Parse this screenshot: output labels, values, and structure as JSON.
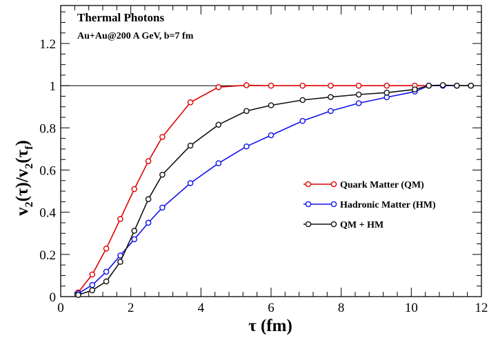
{
  "chart_data": {
    "type": "line",
    "title": "Thermal Photons",
    "subtitle": "Au+Au@200 A GeV, b=7 fm",
    "xlabel": "τ   (fm)",
    "ylabel": "v2(τ)/v2(τf)",
    "xlim": [
      0,
      12
    ],
    "ylim": [
      0,
      1.38
    ],
    "xticks": [
      "0",
      "2",
      "4",
      "6",
      "8",
      "10",
      "12"
    ],
    "yticks": [
      "0",
      "0.2",
      "0.4",
      "0.6",
      "0.8",
      "1",
      "1.2"
    ],
    "reference_line": 1,
    "legend_position": "center-right",
    "grid": false,
    "series": [
      {
        "name": "Quark Matter (QM)",
        "color": "#e00000",
        "x": [
          0.5,
          0.9,
          1.3,
          1.7,
          2.1,
          2.5,
          2.9,
          3.7,
          4.5,
          5.3,
          6.0,
          6.9,
          7.7,
          8.5,
          9.3,
          10.1,
          10.5,
          10.9,
          11.3,
          11.7
        ],
        "y": [
          0.02,
          0.105,
          0.228,
          0.368,
          0.51,
          0.642,
          0.757,
          0.921,
          0.993,
          1.002,
          1.0,
          1.0,
          1.0,
          1.0,
          1.0,
          1.0,
          1.0,
          1.0,
          1.0,
          1.0
        ]
      },
      {
        "name": "Hadronic Matter (HM)",
        "color": "#1010ee",
        "x": [
          0.5,
          0.9,
          1.3,
          1.7,
          2.1,
          2.5,
          2.9,
          3.7,
          4.5,
          5.3,
          6.0,
          6.9,
          7.7,
          8.5,
          9.3,
          10.1,
          10.5,
          10.9,
          11.3,
          11.7
        ],
        "y": [
          0.015,
          0.055,
          0.118,
          0.195,
          0.272,
          0.35,
          0.422,
          0.538,
          0.632,
          0.712,
          0.765,
          0.833,
          0.88,
          0.917,
          0.945,
          0.972,
          1.0,
          1.0,
          1.0,
          1.0
        ]
      },
      {
        "name": "QM + HM",
        "color": "#111111",
        "x": [
          0.5,
          0.9,
          1.3,
          1.7,
          2.1,
          2.5,
          2.9,
          3.7,
          4.5,
          5.3,
          6.0,
          6.9,
          7.7,
          8.5,
          9.3,
          10.1,
          10.5,
          10.9,
          11.3,
          11.7
        ],
        "y": [
          0.008,
          0.03,
          0.072,
          0.165,
          0.312,
          0.462,
          0.578,
          0.716,
          0.815,
          0.88,
          0.907,
          0.932,
          0.946,
          0.958,
          0.967,
          0.982,
          1.0,
          1.003,
          1.0,
          1.0
        ]
      }
    ]
  }
}
